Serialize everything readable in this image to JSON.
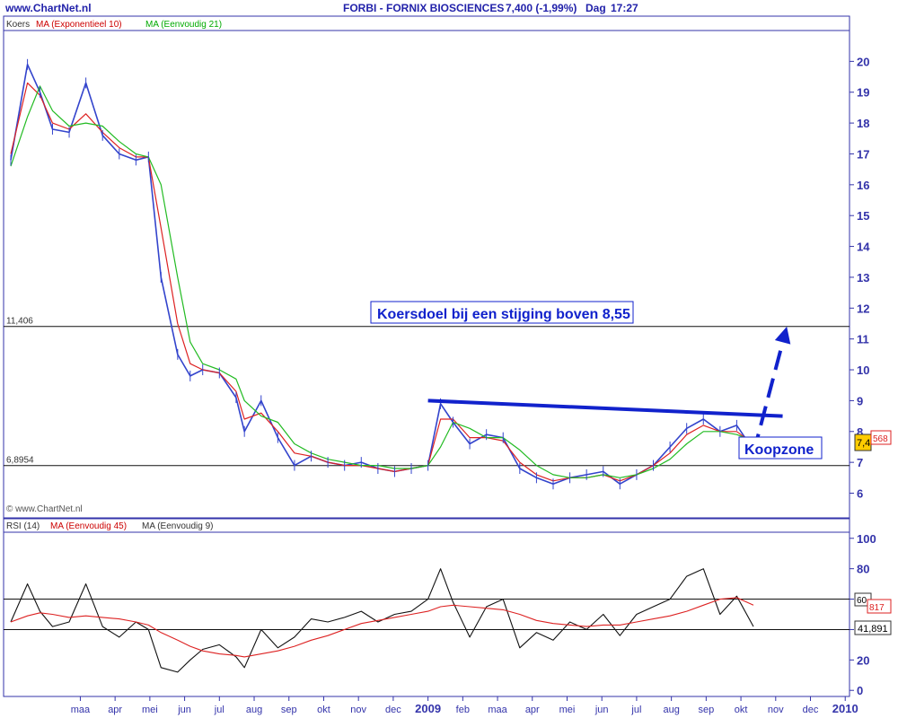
{
  "header": {
    "site": "www.ChartNet.nl",
    "title": "FORBI - FORNIX BIOSCIENCES",
    "quote": "7,400 (-1,99%)",
    "period": "Dag",
    "time": "17:27"
  },
  "price_panel": {
    "legend": [
      {
        "label": "Koers",
        "color": "#333333"
      },
      {
        "label": "MA (Exponentieel 10)",
        "color": "#cc0000"
      },
      {
        "label": "MA (Eenvoudig 21)",
        "color": "#00aa00"
      }
    ],
    "watermark": "© www.ChartNet.nl",
    "annotation_target": "Koersdoel bij een stijging boven 8,55",
    "annotation_buy": "Koopzone",
    "current_tag": "7,4",
    "ma_tag": "568"
  },
  "rsi_panel": {
    "legend": [
      {
        "label": "RSI (14)",
        "color": "#333333"
      },
      {
        "label": "MA (Eenvoudig 45)",
        "color": "#cc0000"
      },
      {
        "label": "MA (Eenvoudig 9)",
        "color": "#333333"
      }
    ],
    "tag_60": "60",
    "ma_tag": "817",
    "current_tag": "41,891"
  },
  "colors": {
    "frame": "#3333aa",
    "price": "#3344cc",
    "ema": "#dd2222",
    "sma": "#22bb22",
    "rsi": "#111111",
    "rsi_ma": "#dd2222",
    "annotation": "#1122cc"
  },
  "chart_data": [
    {
      "type": "line",
      "panel": "price",
      "ylim": [
        5.2,
        21
      ],
      "yticks": [
        6,
        7,
        8,
        9,
        10,
        11,
        12,
        13,
        14,
        15,
        16,
        17,
        18,
        19,
        20
      ],
      "x_labels": [
        "maa",
        "apr",
        "mei",
        "jun",
        "jul",
        "aug",
        "sep",
        "okt",
        "nov",
        "dec",
        "2009",
        "feb",
        "maa",
        "apr",
        "mei",
        "jun",
        "jul",
        "aug",
        "sep",
        "okt",
        "nov",
        "dec",
        "2010"
      ],
      "hlines": [
        {
          "value": 11.406,
          "label": "11,406"
        },
        {
          "value": 6.8954,
          "label": "6,8954"
        }
      ],
      "trendline": {
        "from": [
          2009.0,
          9.0
        ],
        "to": [
          2009.85,
          8.5
        ]
      },
      "arrow": {
        "from": [
          2009.78,
          7.3
        ],
        "to": [
          2009.86,
          11.4
        ]
      },
      "series": [
        {
          "name": "Koers",
          "x": [
            2008.0,
            2008.04,
            2008.07,
            2008.1,
            2008.14,
            2008.18,
            2008.22,
            2008.26,
            2008.3,
            2008.33,
            2008.36,
            2008.4,
            2008.43,
            2008.46,
            2008.5,
            2008.54,
            2008.56,
            2008.6,
            2008.64,
            2008.68,
            2008.72,
            2008.76,
            2008.8,
            2008.84,
            2008.88,
            2008.92,
            2008.96,
            2009.0,
            2009.03,
            2009.06,
            2009.1,
            2009.14,
            2009.18,
            2009.22,
            2009.26,
            2009.3,
            2009.34,
            2009.38,
            2009.42,
            2009.46,
            2009.5,
            2009.54,
            2009.58,
            2009.62,
            2009.66,
            2009.7,
            2009.74,
            2009.78
          ],
          "values": [
            16.8,
            19.9,
            19.0,
            17.8,
            17.7,
            19.3,
            17.6,
            17.0,
            16.8,
            16.9,
            13.0,
            10.5,
            9.8,
            10.0,
            9.9,
            9.1,
            8.0,
            9.0,
            7.8,
            6.9,
            7.2,
            7.0,
            6.9,
            7.0,
            6.8,
            6.7,
            6.8,
            6.9,
            8.9,
            8.3,
            7.6,
            7.9,
            7.8,
            6.8,
            6.5,
            6.3,
            6.5,
            6.6,
            6.7,
            6.3,
            6.6,
            6.9,
            7.5,
            8.1,
            8.4,
            8.0,
            8.2,
            7.4
          ]
        },
        {
          "name": "MA (Exponentieel 10)",
          "x": [
            2008.0,
            2008.04,
            2008.07,
            2008.1,
            2008.14,
            2008.18,
            2008.22,
            2008.26,
            2008.3,
            2008.33,
            2008.36,
            2008.4,
            2008.43,
            2008.46,
            2008.5,
            2008.54,
            2008.56,
            2008.6,
            2008.64,
            2008.68,
            2008.72,
            2008.76,
            2008.8,
            2008.84,
            2008.88,
            2008.92,
            2008.96,
            2009.0,
            2009.03,
            2009.06,
            2009.1,
            2009.14,
            2009.18,
            2009.22,
            2009.26,
            2009.3,
            2009.34,
            2009.38,
            2009.42,
            2009.46,
            2009.5,
            2009.54,
            2009.58,
            2009.62,
            2009.66,
            2009.7,
            2009.74,
            2009.78
          ],
          "values": [
            17.0,
            19.3,
            18.9,
            18.0,
            17.8,
            18.3,
            17.7,
            17.2,
            16.9,
            16.9,
            14.6,
            11.5,
            10.2,
            10.0,
            9.9,
            9.3,
            8.4,
            8.6,
            8.0,
            7.3,
            7.2,
            7.0,
            6.9,
            6.9,
            6.8,
            6.7,
            6.8,
            6.9,
            8.4,
            8.4,
            7.8,
            7.8,
            7.7,
            7.0,
            6.6,
            6.4,
            6.5,
            6.5,
            6.6,
            6.4,
            6.6,
            6.9,
            7.3,
            7.9,
            8.2,
            8.0,
            8.0,
            7.6
          ]
        },
        {
          "name": "MA (Eenvoudig 21)",
          "x": [
            2008.0,
            2008.04,
            2008.07,
            2008.1,
            2008.14,
            2008.18,
            2008.22,
            2008.26,
            2008.3,
            2008.33,
            2008.36,
            2008.4,
            2008.43,
            2008.46,
            2008.5,
            2008.54,
            2008.56,
            2008.6,
            2008.64,
            2008.68,
            2008.72,
            2008.76,
            2008.8,
            2008.84,
            2008.88,
            2008.92,
            2008.96,
            2009.0,
            2009.03,
            2009.06,
            2009.1,
            2009.14,
            2009.18,
            2009.22,
            2009.26,
            2009.3,
            2009.34,
            2009.38,
            2009.42,
            2009.46,
            2009.5,
            2009.54,
            2009.58,
            2009.62,
            2009.66,
            2009.7,
            2009.74,
            2009.78
          ],
          "values": [
            16.6,
            18.2,
            19.2,
            18.4,
            17.9,
            18.0,
            17.9,
            17.4,
            17.0,
            16.9,
            16.0,
            13.0,
            10.9,
            10.2,
            10.0,
            9.7,
            9.0,
            8.5,
            8.3,
            7.6,
            7.3,
            7.1,
            7.0,
            6.9,
            6.9,
            6.8,
            6.8,
            6.9,
            7.5,
            8.3,
            8.1,
            7.8,
            7.8,
            7.4,
            6.9,
            6.6,
            6.5,
            6.5,
            6.6,
            6.5,
            6.6,
            6.8,
            7.1,
            7.6,
            8.0,
            8.0,
            7.9,
            7.7
          ]
        }
      ]
    },
    {
      "type": "line",
      "panel": "rsi",
      "ylim": [
        -4,
        104
      ],
      "yticks": [
        0,
        20,
        40,
        60,
        80,
        100
      ],
      "hlines": [
        {
          "value": 60,
          "label": "60"
        },
        {
          "value": 40,
          "label": ""
        }
      ],
      "series": [
        {
          "name": "RSI (14)",
          "x": [
            2008.0,
            2008.04,
            2008.07,
            2008.1,
            2008.14,
            2008.18,
            2008.22,
            2008.26,
            2008.3,
            2008.33,
            2008.36,
            2008.4,
            2008.43,
            2008.46,
            2008.5,
            2008.54,
            2008.56,
            2008.6,
            2008.64,
            2008.68,
            2008.72,
            2008.76,
            2008.8,
            2008.84,
            2008.88,
            2008.92,
            2008.96,
            2009.0,
            2009.03,
            2009.06,
            2009.1,
            2009.14,
            2009.18,
            2009.22,
            2009.26,
            2009.3,
            2009.34,
            2009.38,
            2009.42,
            2009.46,
            2009.5,
            2009.54,
            2009.58,
            2009.62,
            2009.66,
            2009.7,
            2009.74,
            2009.78
          ],
          "values": [
            45,
            70,
            52,
            42,
            45,
            70,
            42,
            35,
            45,
            40,
            15,
            12,
            20,
            27,
            30,
            22,
            15,
            40,
            28,
            35,
            47,
            45,
            48,
            52,
            45,
            50,
            52,
            60,
            80,
            58,
            35,
            55,
            60,
            28,
            38,
            33,
            45,
            40,
            50,
            36,
            50,
            55,
            60,
            75,
            80,
            50,
            62,
            42
          ]
        },
        {
          "name": "MA (Eenvoudig 45)",
          "x": [
            2008.0,
            2008.04,
            2008.07,
            2008.1,
            2008.14,
            2008.18,
            2008.22,
            2008.26,
            2008.3,
            2008.33,
            2008.36,
            2008.4,
            2008.43,
            2008.46,
            2008.5,
            2008.54,
            2008.56,
            2008.6,
            2008.64,
            2008.68,
            2008.72,
            2008.76,
            2008.8,
            2008.84,
            2008.88,
            2008.92,
            2008.96,
            2009.0,
            2009.03,
            2009.06,
            2009.1,
            2009.14,
            2009.18,
            2009.22,
            2009.26,
            2009.3,
            2009.34,
            2009.38,
            2009.42,
            2009.46,
            2009.5,
            2009.54,
            2009.58,
            2009.62,
            2009.66,
            2009.7,
            2009.74,
            2009.78
          ],
          "values": [
            45,
            49,
            51,
            50,
            48,
            49,
            48,
            47,
            45,
            43,
            38,
            33,
            29,
            26,
            24,
            23,
            22,
            24,
            26,
            29,
            33,
            36,
            40,
            44,
            46,
            48,
            50,
            52,
            55,
            56,
            55,
            54,
            53,
            50,
            46,
            44,
            43,
            42,
            43,
            43,
            45,
            47,
            49,
            52,
            56,
            60,
            61,
            56
          ]
        }
      ]
    }
  ]
}
